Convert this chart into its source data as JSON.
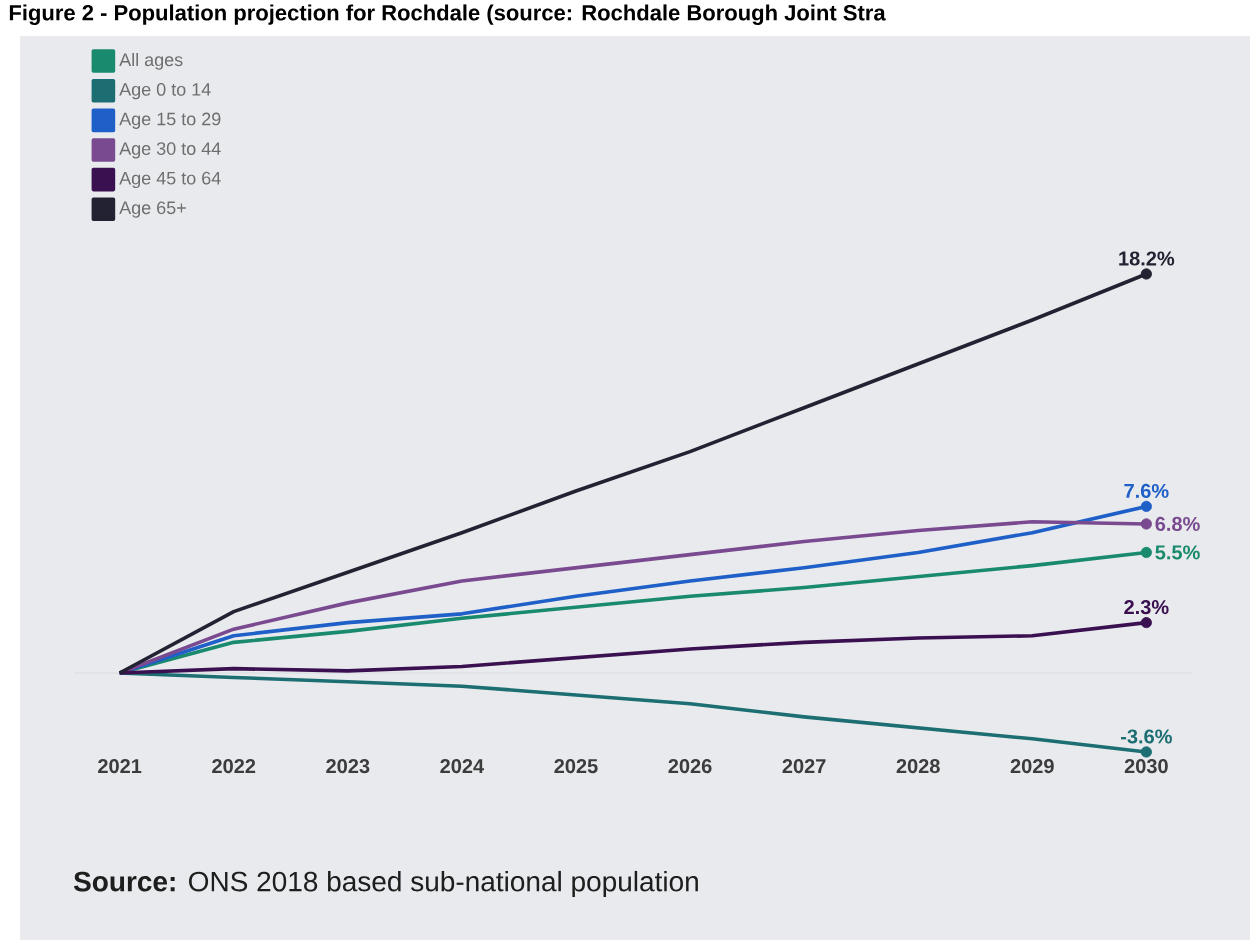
{
  "chart_data": {
    "type": "line",
    "title": "Figure 2 - Population projection for Rochdale (source: Rochdale Borough Joint Stra",
    "x": [
      2021,
      2022,
      2023,
      2024,
      2025,
      2026,
      2027,
      2028,
      2029,
      2030
    ],
    "xlim": [
      2020.6,
      2030.4
    ],
    "xticks": [
      2021,
      2022,
      2023,
      2024,
      2025,
      2026,
      2027,
      2028,
      2029,
      2030
    ],
    "tick_labels": "x",
    "series": [
      {
        "name": "All ages",
        "color": "#1a8a6e",
        "values": [
          0,
          1.4,
          1.9,
          2.5,
          3.0,
          3.5,
          3.9,
          4.4,
          4.9,
          5.5
        ],
        "value_labels": [
          null,
          null,
          null,
          null,
          null,
          null,
          null,
          null,
          null,
          "5.5%"
        ]
      },
      {
        "name": "Age 0 to 14",
        "color": "#1d6e72",
        "values": [
          0,
          -0.2,
          -0.4,
          -0.6,
          -1.0,
          -1.4,
          -2.0,
          -2.5,
          -3.0,
          -3.6
        ],
        "value_labels": [
          null,
          null,
          null,
          null,
          null,
          null,
          null,
          null,
          null,
          "-3.6%"
        ]
      },
      {
        "name": "Age 15 to 29",
        "color": "#1f5fc8",
        "values": [
          0,
          1.7,
          2.3,
          2.7,
          3.5,
          4.2,
          4.8,
          5.5,
          6.4,
          7.6
        ],
        "value_labels": [
          null,
          null,
          null,
          null,
          null,
          null,
          null,
          null,
          null,
          "7.6%"
        ]
      },
      {
        "name": "Age 30 to 44",
        "color": "#7a4a90",
        "values": [
          0,
          2.0,
          3.2,
          4.2,
          4.8,
          5.4,
          6.0,
          6.5,
          6.9,
          6.8
        ],
        "value_labels": [
          null,
          null,
          null,
          null,
          null,
          null,
          null,
          null,
          null,
          "6.8%"
        ]
      },
      {
        "name": "Age 45 to 64",
        "color": "#3a1050",
        "values": [
          0,
          0.2,
          0.1,
          0.3,
          0.7,
          1.1,
          1.4,
          1.6,
          1.7,
          2.3
        ],
        "value_labels": [
          null,
          null,
          null,
          null,
          null,
          null,
          null,
          null,
          null,
          "2.3%"
        ]
      },
      {
        "name": "Age 65+",
        "color": "#222233",
        "values": [
          0,
          2.8,
          4.6,
          6.4,
          8.3,
          10.1,
          12.1,
          14.1,
          16.1,
          18.2
        ],
        "value_labels": [
          null,
          null,
          null,
          null,
          null,
          null,
          null,
          null,
          null,
          "18.2%"
        ]
      }
    ],
    "ref_lines": [
      {
        "axis": "y",
        "value": 0,
        "color": "#d4d8dc"
      }
    ],
    "legend": "top left",
    "line_style": "solid",
    "grid": false,
    "annotations": [
      "**Source:** ONS 2018 based sub-national population"
    ]
  }
}
